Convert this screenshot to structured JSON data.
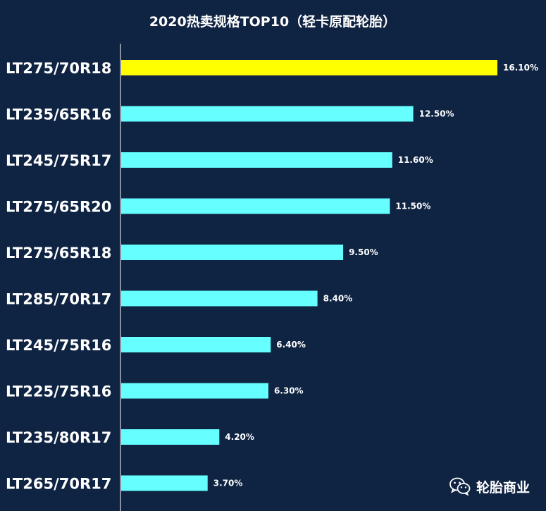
{
  "colors": {
    "background": "#0f2342",
    "highlight_bar": "#ffff00",
    "bar": "#66ffff",
    "text": "#ffffff",
    "axis": "#ffffff"
  },
  "watermark": {
    "icon": "wechat-icon",
    "text": "轮胎商业"
  },
  "chart_data": {
    "type": "bar",
    "orientation": "horizontal",
    "title": "2020热卖规格TOP10（轻卡原配轮胎）",
    "categories": [
      "LT275/70R18",
      "LT235/65R16",
      "LT245/75R17",
      "LT275/65R20",
      "LT275/65R18",
      "LT285/70R17",
      "LT245/75R16",
      "LT225/75R16",
      "LT235/80R17",
      "LT265/70R17"
    ],
    "values": [
      16.1,
      12.5,
      11.6,
      11.5,
      9.5,
      8.4,
      6.4,
      6.3,
      4.2,
      3.7
    ],
    "value_labels": [
      "16.10%",
      "12.50%",
      "11.60%",
      "11.50%",
      "9.50%",
      "8.40%",
      "6.40%",
      "6.30%",
      "4.20%",
      "3.70%"
    ],
    "unit": "%",
    "xlim": [
      0,
      16.1
    ],
    "grid": false,
    "highlight_index": 0
  }
}
